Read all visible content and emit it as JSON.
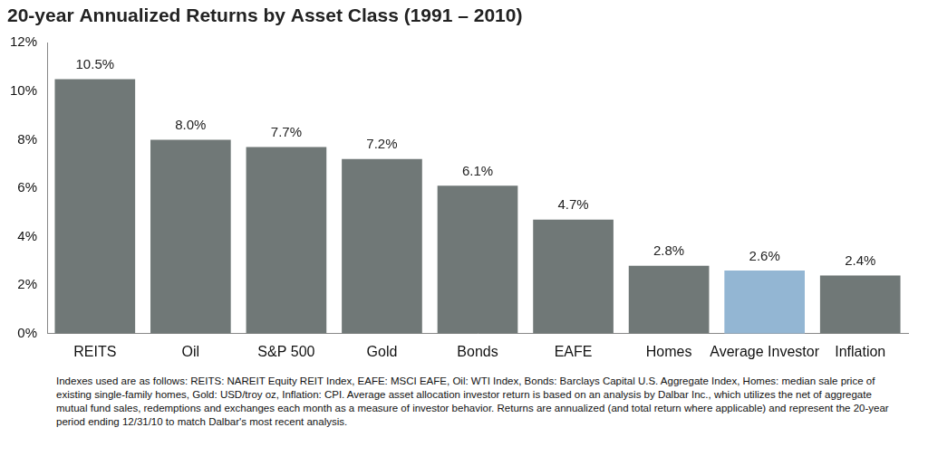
{
  "chart_data": {
    "type": "bar",
    "title": "20-year Annualized Returns by Asset Class (1991 – 2010)",
    "categories": [
      "REITS",
      "Oil",
      "S&P 500",
      "Gold",
      "Bonds",
      "EAFE",
      "Homes",
      "Average Investor",
      "Inflation"
    ],
    "values": [
      10.5,
      8.0,
      7.7,
      7.2,
      6.1,
      4.7,
      2.8,
      2.6,
      2.4
    ],
    "value_labels": [
      "10.5%",
      "8.0%",
      "7.7%",
      "7.2%",
      "6.1%",
      "4.7%",
      "2.8%",
      "2.6%",
      "2.4%"
    ],
    "colors": [
      "#707877",
      "#707877",
      "#707877",
      "#707877",
      "#707877",
      "#707877",
      "#707877",
      "#93b6d3",
      "#707877"
    ],
    "ylim": [
      0,
      12
    ],
    "yticks": [
      {
        "value": 0,
        "label": "0%"
      },
      {
        "value": 2,
        "label": "2%"
      },
      {
        "value": 4,
        "label": "4%"
      },
      {
        "value": 6,
        "label": "6%"
      },
      {
        "value": 8,
        "label": "8%"
      },
      {
        "value": 10,
        "label": "10%"
      },
      {
        "value": 12,
        "label": "12%"
      }
    ],
    "grid": false,
    "data_labels": true,
    "footnote": "Indexes used are as follows: REITS: NAREIT Equity REIT Index, EAFE: MSCI EAFE, Oil: WTI Index, Bonds: Barclays Capital U.S. Aggregate Index, Homes: median sale price of existing single-family homes, Gold: USD/troy oz, Inflation: CPI. Average asset allocation investor return is based on an analysis by Dalbar Inc., which utilizes the net of aggregate mutual fund sales, redemptions and exchanges each month as a measure of investor behavior. Returns are annualized (and total return where applicable) and represent the 20-year period ending 12/31/10 to match Dalbar's most recent analysis."
  }
}
